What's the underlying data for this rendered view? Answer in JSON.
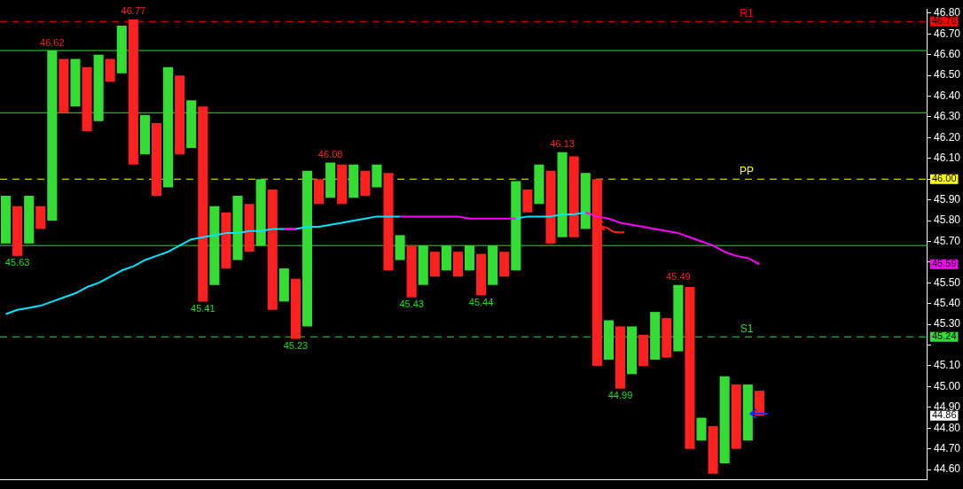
{
  "chart_data": {
    "type": "bar",
    "categories": [
      null,
      null,
      null,
      null,
      null,
      null,
      null,
      null,
      null,
      null,
      null,
      null,
      null,
      null,
      null,
      null,
      null,
      null,
      null,
      null,
      null,
      null,
      null,
      null,
      null,
      null,
      null,
      null,
      null,
      null,
      null,
      null,
      null,
      null,
      null,
      null,
      null,
      null,
      null,
      null,
      null,
      null,
      null,
      null,
      null,
      null,
      null,
      null,
      null,
      null,
      null,
      null,
      null,
      null,
      null,
      null,
      null,
      null,
      null,
      null,
      null,
      null,
      null,
      null,
      null,
      null,
      null,
      null,
      null,
      null,
      null,
      null,
      null,
      null,
      null,
      null,
      null,
      null,
      null,
      null
    ],
    "series": [
      {
        "base": [
          45.69,
          45.63,
          45.69,
          45.76,
          45.8,
          46.32,
          46.35,
          46.23,
          46.28,
          46.47,
          46.51,
          46.07,
          46.12,
          45.92,
          45.96,
          46.12,
          46.15,
          45.41,
          45.49,
          45.57,
          45.61,
          45.65,
          45.68,
          45.37,
          45.41,
          45.23,
          45.29,
          45.88,
          45.91,
          45.88,
          45.91,
          45.92,
          45.96,
          45.56,
          45.61,
          45.43,
          45.49,
          45.53,
          45.56,
          45.53,
          45.56,
          45.44,
          45.49,
          45.53,
          45.56,
          45.84,
          45.88,
          45.69,
          45.72,
          45.72,
          45.76,
          45.1,
          45.13,
          44.99,
          45.06,
          45.1,
          45.13,
          45.14,
          45.17,
          44.7,
          44.74,
          44.58,
          44.63,
          44.7,
          44.74,
          44.86,
          null,
          null,
          null,
          null,
          null,
          null,
          null,
          null,
          null,
          null,
          null,
          null,
          null,
          null
        ],
        "values": [
          0.23,
          0.24,
          0.23,
          0.11,
          0.82,
          0.26,
          0.23,
          0.31,
          0.32,
          0.11,
          0.23,
          0.7,
          0.19,
          0.35,
          0.58,
          0.38,
          0.23,
          0.94,
          0.38,
          0.27,
          0.31,
          0.23,
          0.32,
          0.58,
          0.16,
          0.29,
          0.75,
          0.12,
          0.17,
          0.19,
          0.16,
          0.12,
          0.11,
          0.47,
          0.12,
          0.25,
          0.19,
          0.12,
          0.12,
          0.12,
          0.12,
          0.2,
          0.19,
          0.12,
          0.43,
          0.11,
          0.19,
          0.35,
          0.41,
          0.39,
          0.27,
          0.9,
          0.19,
          0.3,
          0.23,
          0.15,
          0.23,
          0.19,
          0.32,
          0.78,
          0.11,
          0.23,
          0.42,
          0.31,
          0.27,
          0.12,
          null,
          null,
          null,
          null,
          null,
          null,
          null,
          null,
          null,
          null,
          null,
          null,
          null,
          null
        ],
        "colors": [
          "#33dd33",
          "#ff2020",
          "#33dd33",
          "#ff2020",
          "#33dd33",
          "#ff2020",
          "#33dd33",
          "#ff2020",
          "#33dd33",
          "#ff2020",
          "#33dd33",
          "#ff2020",
          "#33dd33",
          "#ff2020",
          "#33dd33",
          "#ff2020",
          "#33dd33",
          "#ff2020",
          "#33dd33",
          "#ff2020",
          "#33dd33",
          "#ff2020",
          "#33dd33",
          "#ff2020",
          "#33dd33",
          "#ff2020",
          "#33dd33",
          "#ff2020",
          "#33dd33",
          "#ff2020",
          "#33dd33",
          "#ff2020",
          "#33dd33",
          "#ff2020",
          "#33dd33",
          "#ff2020",
          "#33dd33",
          "#ff2020",
          "#33dd33",
          "#ff2020",
          "#33dd33",
          "#ff2020",
          "#33dd33",
          "#ff2020",
          "#33dd33",
          "#ff2020",
          "#33dd33",
          "#ff2020",
          "#33dd33",
          "#ff2020",
          "#33dd33",
          "#ff2020",
          "#33dd33",
          "#ff2020",
          "#33dd33",
          "#ff2020",
          "#33dd33",
          "#ff2020",
          "#33dd33",
          "#ff2020",
          "#33dd33",
          "#ff2020",
          "#33dd33",
          "#ff2020",
          "#33dd33",
          "#ff2020",
          null,
          null,
          null,
          null,
          null,
          null,
          null,
          null,
          null,
          null,
          null,
          null,
          null,
          null
        ]
      },
      {
        "type": "line",
        "color": "#00e5ff",
        "marker": "none",
        "values": [
          45.35,
          45.37,
          45.38,
          45.39,
          45.41,
          45.43,
          45.45,
          45.48,
          45.5,
          45.53,
          45.56,
          45.58,
          45.61,
          45.63,
          45.65,
          45.68,
          45.71,
          45.72,
          45.73,
          45.74,
          45.74,
          45.75,
          45.75,
          45.76,
          45.76,
          45.76,
          45.77,
          45.77,
          45.78,
          45.79,
          45.8,
          45.81,
          45.82,
          45.82,
          45.82,
          null,
          null,
          null,
          null,
          null,
          null,
          null,
          null,
          null,
          45.81,
          45.82,
          45.82,
          45.82,
          45.83,
          45.83,
          45.84,
          null,
          null,
          null,
          null,
          null,
          null,
          null,
          null,
          null,
          null,
          null,
          null,
          null,
          null,
          null,
          null,
          null,
          null,
          null,
          null,
          null,
          null,
          null,
          null,
          null,
          null,
          null,
          null,
          null
        ]
      },
      {
        "type": "line",
        "color": "#ff00ff",
        "marker": "none",
        "values": [
          null,
          null,
          null,
          null,
          null,
          null,
          null,
          null,
          null,
          null,
          null,
          null,
          null,
          null,
          null,
          null,
          null,
          null,
          null,
          null,
          null,
          null,
          null,
          null,
          45.76,
          45.76,
          null,
          null,
          null,
          null,
          null,
          null,
          null,
          null,
          45.82,
          45.82,
          45.82,
          45.82,
          45.82,
          45.82,
          45.81,
          45.81,
          45.81,
          45.81,
          45.81,
          null,
          null,
          null,
          null,
          null,
          45.84,
          45.82,
          45.81,
          45.79,
          45.78,
          45.77,
          45.76,
          45.75,
          45.74,
          45.72,
          45.7,
          45.68,
          45.65,
          45.63,
          45.62,
          45.59,
          null,
          null,
          null,
          null,
          null,
          null,
          null,
          null,
          null,
          null,
          null,
          null,
          null,
          null
        ]
      }
    ],
    "ylim": [
      44.55,
      46.82
    ],
    "yticks": [
      {
        "value": 44.6,
        "label": "44.60"
      },
      {
        "value": 44.7,
        "label": "44.70"
      },
      {
        "value": 44.8,
        "label": "44.80"
      },
      {
        "value": 44.9,
        "label": "44.90"
      },
      {
        "value": 45.0,
        "label": "45.00"
      },
      {
        "value": 45.1,
        "label": "45.10"
      },
      {
        "value": 45.2,
        "label": null
      },
      {
        "value": 45.3,
        "label": "45.30"
      },
      {
        "value": 45.4,
        "label": "45.40"
      },
      {
        "value": 45.5,
        "label": "45.50"
      },
      {
        "value": 45.6,
        "label": null
      },
      {
        "value": 45.7,
        "label": "45.70"
      },
      {
        "value": 45.8,
        "label": "45.80"
      },
      {
        "value": 45.9,
        "label": "45.90"
      },
      {
        "value": 46.0,
        "label": null
      },
      {
        "value": 46.1,
        "label": "46.10"
      },
      {
        "value": 46.2,
        "label": "46.20"
      },
      {
        "value": 46.3,
        "label": "46.30"
      },
      {
        "value": 46.4,
        "label": "46.40"
      },
      {
        "value": 46.5,
        "label": "46.50"
      },
      {
        "value": 46.6,
        "label": "46.60"
      },
      {
        "value": 46.7,
        "label": "46.70"
      },
      {
        "value": 46.8,
        "label": "46.80"
      }
    ],
    "tick_labels": "y",
    "ref_lines": [
      {
        "axis": "y",
        "value": 46.62,
        "color": "#33dd33",
        "line_style": "solid"
      },
      {
        "axis": "y",
        "value": 46.32,
        "color": "#33dd33",
        "line_style": "solid"
      },
      {
        "axis": "y",
        "value": 45.68,
        "color": "#33dd33",
        "line_style": "solid"
      },
      {
        "axis": "y",
        "value": 46.76,
        "label": "R1",
        "color": "#ff0000",
        "line_style": "dashed"
      },
      {
        "axis": "y",
        "value": 46.0,
        "label": "PP",
        "color": "#ffff00",
        "line_style": "dashed"
      },
      {
        "axis": "y",
        "value": 45.24,
        "label": "S1",
        "color": "#33dd33",
        "line_style": "dashed"
      }
    ],
    "annotations": [
      {
        "text": "46.62",
        "y": 46.62
      },
      {
        "text": "46.77",
        "y": 46.77
      },
      {
        "text": "45.63",
        "y": 45.63
      },
      {
        "text": "45.41",
        "y": 45.41
      },
      {
        "text": "45.23",
        "y": 45.23
      },
      {
        "text": "46.08",
        "y": 46.08
      },
      {
        "text": "45.43",
        "y": 45.43
      },
      {
        "text": "45.44",
        "y": 45.44
      },
      {
        "text": "46.13",
        "y": 46.13
      },
      {
        "text": "44.99",
        "y": 44.99
      },
      {
        "text": "45.49",
        "y": 45.49
      },
      {
        "text": "46.76",
        "y": 46.76
      },
      {
        "text": "46.00",
        "y": 46.0
      },
      {
        "text": "45.59",
        "y": 45.59
      },
      {
        "text": "45.24",
        "y": 45.24
      },
      {
        "text": "44.86",
        "y": 44.86
      }
    ]
  }
}
